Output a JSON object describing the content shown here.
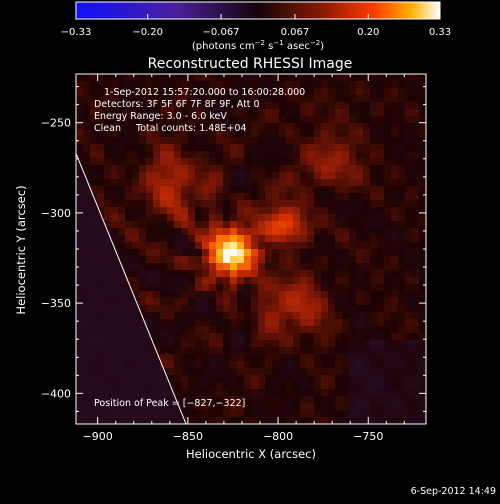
{
  "chart_data": {
    "type": "heatmap",
    "title": "Reconstructed RHESSI Image",
    "xlabel": "Heliocentric X (arcsec)",
    "ylabel": "Heliocentric Y (arcsec)",
    "xlim": [
      -912,
      -718
    ],
    "ylim": [
      -417,
      -223
    ],
    "xticks": [
      -900,
      -850,
      -800,
      -750
    ],
    "xtick_labels": [
      "−900",
      "−850",
      "−800",
      "−750"
    ],
    "yticks": [
      -250,
      -300,
      -350,
      -400
    ],
    "ytick_labels": [
      "−250",
      "−300",
      "−350",
      "−400"
    ],
    "annotations": [
      "1-Sep-2012 15:57:20.000 to 16:00:28.000",
      "Detectors: 3F 5F 6F 7F 8F 9F, Att 0",
      "Energy Range: 3.0 - 6.0 keV",
      "Clean     Total counts: 1.48E+04"
    ],
    "peak_label": "Position of Peak = [−827,−322]",
    "peak": {
      "x": -827,
      "y": -322
    },
    "colorbar": {
      "min": -0.33,
      "max": 0.33,
      "ticks": [
        -0.33,
        -0.2,
        -0.067,
        0.067,
        0.2,
        0.33
      ],
      "tick_labels": [
        "−0.33",
        "−0.20",
        "−0.067",
        "0.067",
        "0.20",
        "0.33"
      ],
      "unit_prefix": "(photons cm",
      "unit_exp1": "−2",
      "unit_mid1": " s",
      "unit_exp2": "−1",
      "unit_mid2": " asec",
      "unit_exp3": "−2",
      "unit_suffix": ")"
    },
    "sources": [
      {
        "x": -826,
        "y": -322,
        "peak": 0.33,
        "sigma": 9
      },
      {
        "x": -797,
        "y": -305,
        "peak": 0.13,
        "sigma": 9
      },
      {
        "x": -792,
        "y": -352,
        "peak": 0.09,
        "sigma": 12
      },
      {
        "x": -858,
        "y": -285,
        "peak": 0.08,
        "sigma": 14
      },
      {
        "x": -770,
        "y": -268,
        "peak": 0.06,
        "sigma": 13
      }
    ],
    "limb_line": [
      {
        "x": -912,
        "y": -267
      },
      {
        "x": -851,
        "y": -417
      }
    ]
  },
  "footer": {
    "date_stamp": "6-Sep-2012 14:49"
  }
}
